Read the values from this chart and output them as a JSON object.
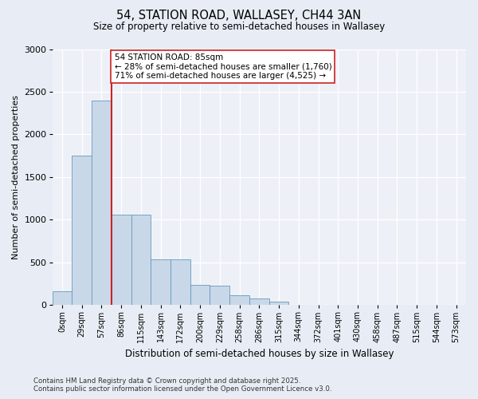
{
  "title1": "54, STATION ROAD, WALLASEY, CH44 3AN",
  "title2": "Size of property relative to semi-detached houses in Wallasey",
  "xlabel": "Distribution of semi-detached houses by size in Wallasey",
  "ylabel": "Number of semi-detached properties",
  "categories": [
    "0sqm",
    "29sqm",
    "57sqm",
    "86sqm",
    "115sqm",
    "143sqm",
    "172sqm",
    "200sqm",
    "229sqm",
    "258sqm",
    "286sqm",
    "315sqm",
    "344sqm",
    "372sqm",
    "401sqm",
    "430sqm",
    "458sqm",
    "487sqm",
    "515sqm",
    "544sqm",
    "573sqm"
  ],
  "values": [
    160,
    1750,
    2400,
    1060,
    1060,
    540,
    540,
    240,
    230,
    120,
    75,
    45,
    0,
    0,
    0,
    0,
    0,
    0,
    0,
    0,
    0
  ],
  "bar_color": "#c8d8e8",
  "bar_edge_color": "#6699bb",
  "vline_index": 2.5,
  "vline_color": "#cc2222",
  "annotation_text": "54 STATION ROAD: 85sqm\n← 28% of semi-detached houses are smaller (1,760)\n71% of semi-detached houses are larger (4,525) →",
  "annotation_box_color": "#ffffff",
  "annotation_box_edge": "#cc2222",
  "ylim": [
    0,
    3000
  ],
  "yticks": [
    0,
    500,
    1000,
    1500,
    2000,
    2500,
    3000
  ],
  "footer": "Contains HM Land Registry data © Crown copyright and database right 2025.\nContains public sector information licensed under the Open Government Licence v3.0.",
  "bg_color": "#e8edf5",
  "plot_bg_color": "#edf1f7"
}
